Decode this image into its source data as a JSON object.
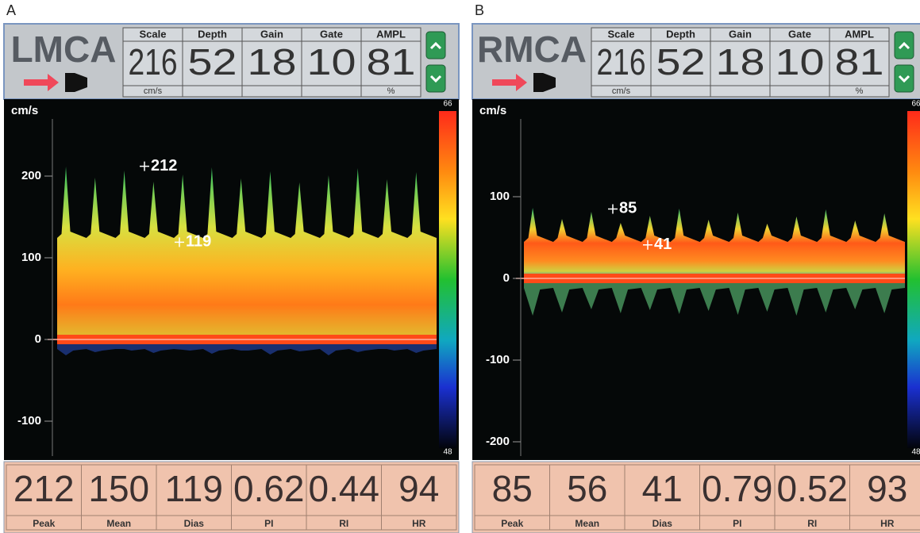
{
  "panels": [
    {
      "label": "A",
      "vessel": "LMCA",
      "settings": [
        {
          "name": "Scale",
          "value": 216,
          "unit": "cm/s"
        },
        {
          "name": "Depth",
          "value": 52
        },
        {
          "name": "Gain",
          "value": 18
        },
        {
          "name": "Gate",
          "value": 10
        },
        {
          "name": "AMPL",
          "value": 81,
          "unit": "%"
        }
      ],
      "axis_unit": "cm/s",
      "axis_ticks": [
        200,
        100,
        0,
        -100
      ],
      "color_scale": {
        "top": 66,
        "bottom": 48
      },
      "cursors": {
        "peak": 212,
        "dias": 119
      },
      "measurements": [
        {
          "value": 212,
          "label": "Peak"
        },
        {
          "value": 150,
          "label": "Mean"
        },
        {
          "value": 119,
          "label": "Dias"
        },
        {
          "value": 0.62,
          "label": "PI"
        },
        {
          "value": 0.44,
          "label": "RI"
        },
        {
          "value": 94,
          "label": "HR"
        }
      ]
    },
    {
      "label": "B",
      "vessel": "RMCA",
      "settings": [
        {
          "name": "Scale",
          "value": 216,
          "unit": "cm/s"
        },
        {
          "name": "Depth",
          "value": 52
        },
        {
          "name": "Gain",
          "value": 18
        },
        {
          "name": "Gate",
          "value": 10
        },
        {
          "name": "AMPL",
          "value": 81,
          "unit": "%"
        }
      ],
      "axis_unit": "cm/s",
      "axis_ticks": [
        100,
        0,
        -100,
        -200
      ],
      "color_scale": {
        "top": 66,
        "bottom": 48
      },
      "cursors": {
        "peak": 85,
        "dias": 41
      },
      "measurements": [
        {
          "value": 85,
          "label": "Peak"
        },
        {
          "value": 56,
          "label": "Mean"
        },
        {
          "value": 41,
          "label": "Dias"
        },
        {
          "value": 0.79,
          "label": "PI"
        },
        {
          "value": 0.52,
          "label": "RI"
        },
        {
          "value": 93,
          "label": "HR"
        }
      ]
    }
  ]
}
